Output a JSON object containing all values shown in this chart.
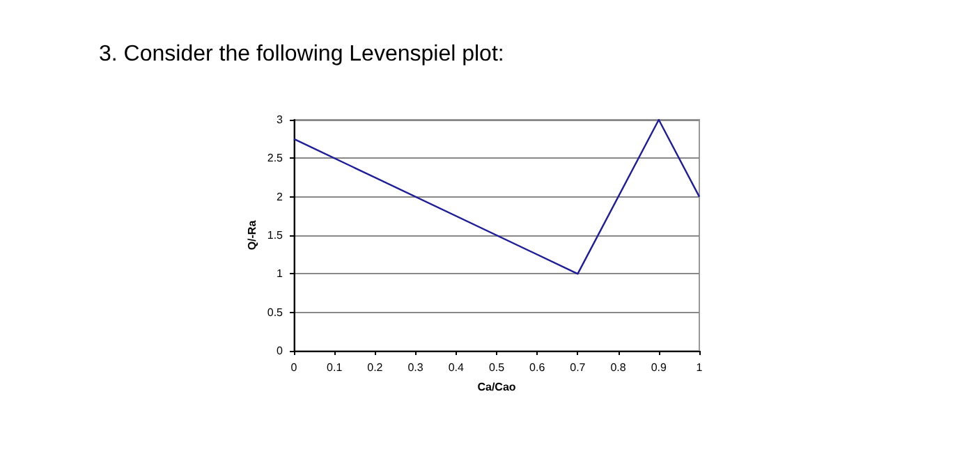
{
  "chart_data": {
    "type": "line",
    "title": "3. Consider the following Levenspiel plot:",
    "xlabel": "Ca/Cao",
    "ylabel": "Q/-Ra",
    "x": [
      0,
      0.7,
      0.9,
      1
    ],
    "series": [
      {
        "color": "#1c1c9c",
        "values": [
          2.75,
          1,
          3,
          2
        ]
      }
    ],
    "xlim": [
      0,
      1
    ],
    "xticks": [
      0,
      0.1,
      0.2,
      0.3,
      0.4,
      0.5,
      0.6,
      0.7,
      0.8,
      0.9,
      1
    ],
    "ylim": [
      0,
      3
    ],
    "yticks": [
      0,
      0.5,
      1,
      1.5,
      2,
      2.5,
      3
    ],
    "grid": "y",
    "marker": "none",
    "line_style": "solid"
  }
}
